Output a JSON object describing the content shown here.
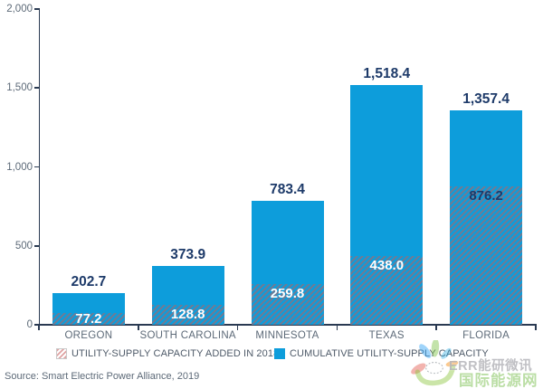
{
  "chart_data": {
    "type": "bar",
    "stacked": true,
    "categories": [
      "OREGON",
      "SOUTH CAROLINA",
      "MINNESOTA",
      "TEXAS",
      "FLORIDA"
    ],
    "series": [
      {
        "name": "UTILITY-SUPPLY CAPACITY ADDED IN 2018",
        "style": "hatched",
        "values": [
          77.2,
          128.8,
          259.8,
          438.0,
          876.2
        ]
      },
      {
        "name": "CUMULATIVE UTILITY-SUPPLY CAPACITY",
        "style": "solid",
        "values": [
          202.7,
          373.9,
          783.4,
          1518.4,
          1357.4
        ],
        "note": "cumulative totals; bar total height = cumulative, hatched bottom segment = added in 2018"
      }
    ],
    "total_labels": [
      "202.7",
      "373.9",
      "783.4",
      "1,518.4",
      "1,357.4"
    ],
    "inside_labels": [
      "77.2",
      "128.8",
      "259.8",
      "438.0",
      "876.2"
    ],
    "inside_label_colors": [
      "#ffffff",
      "#ffffff",
      "#ffffff",
      "#ffffff",
      "#1d3a69"
    ],
    "title": "",
    "xlabel": "",
    "ylabel": "",
    "ylim": [
      0,
      2000
    ],
    "yticks": [
      {
        "value": 0,
        "label": "0"
      },
      {
        "value": 500,
        "label": "500"
      },
      {
        "value": 1000,
        "label": "1,000"
      },
      {
        "value": 1500,
        "label": "1,500"
      },
      {
        "value": 2000,
        "label": "2,000"
      }
    ],
    "grid": false,
    "legend_position": "bottom",
    "colors": {
      "solid": "#0d9ddb",
      "stripe": "rgba(125,118,138,0.85)",
      "navy": "#1d3a69",
      "axis": "#2a3a52",
      "gray": "#5d6a78"
    }
  },
  "legend": {
    "items": [
      {
        "label": "UTILITY-SUPPLY CAPACITY ADDED IN 2018",
        "swatch": "hatched"
      },
      {
        "label": "CUMULATIVE UTILITY-SUPPLY CAPACITY",
        "swatch": "solid"
      }
    ]
  },
  "source": {
    "text": "Source: Smart Electric Power Alliance, 2019"
  },
  "watermark": {
    "line1": "ERR能研微讯",
    "line2": "国际能源网",
    "logo": "flower-pinwheel-logo"
  }
}
